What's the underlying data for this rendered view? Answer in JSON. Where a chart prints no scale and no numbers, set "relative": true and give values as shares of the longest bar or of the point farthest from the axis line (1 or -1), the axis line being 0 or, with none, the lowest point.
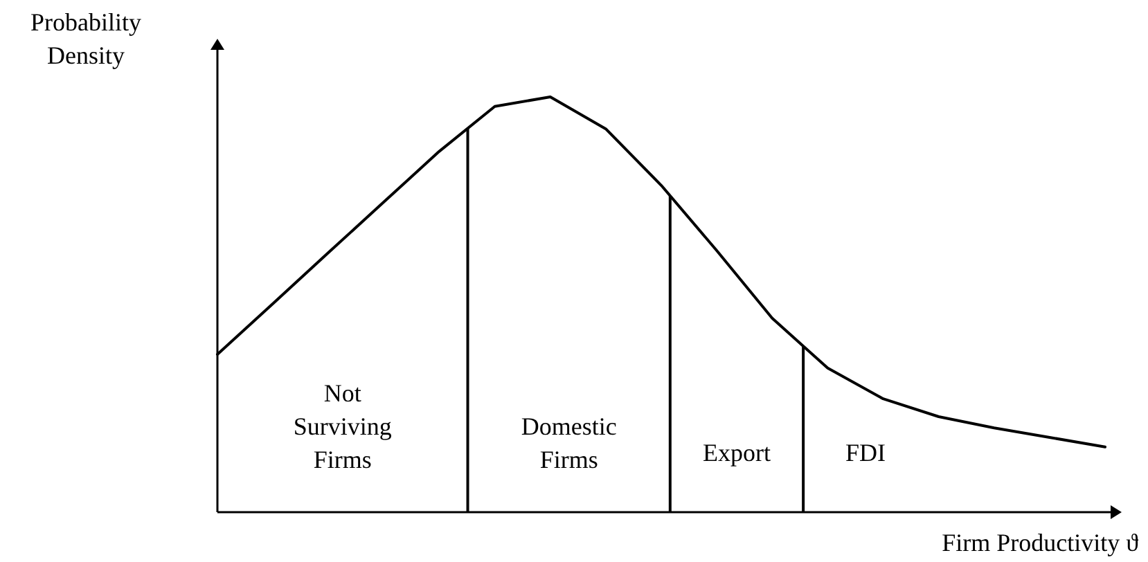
{
  "chart_data": {
    "type": "line",
    "relative": true,
    "xlabel": "Firm Productivity ϑ",
    "ylabel": "Probability Density",
    "marker": "none",
    "line_style": "solid",
    "color": "#000000",
    "categories": [
      null,
      null,
      null,
      null,
      null,
      null,
      null,
      null,
      null,
      null,
      null,
      null,
      null,
      null,
      null,
      null,
      null
    ],
    "values": [
      0.38,
      0.502,
      0.625,
      0.747,
      0.869,
      0.977,
      1,
      0.923,
      0.787,
      0.63,
      0.467,
      0.347,
      0.273,
      0.23,
      0.203,
      0.18,
      0.157
    ],
    "annotations": [
      "Not Surviving Firms",
      "Domestic Firms",
      "Export",
      "FDI"
    ]
  }
}
